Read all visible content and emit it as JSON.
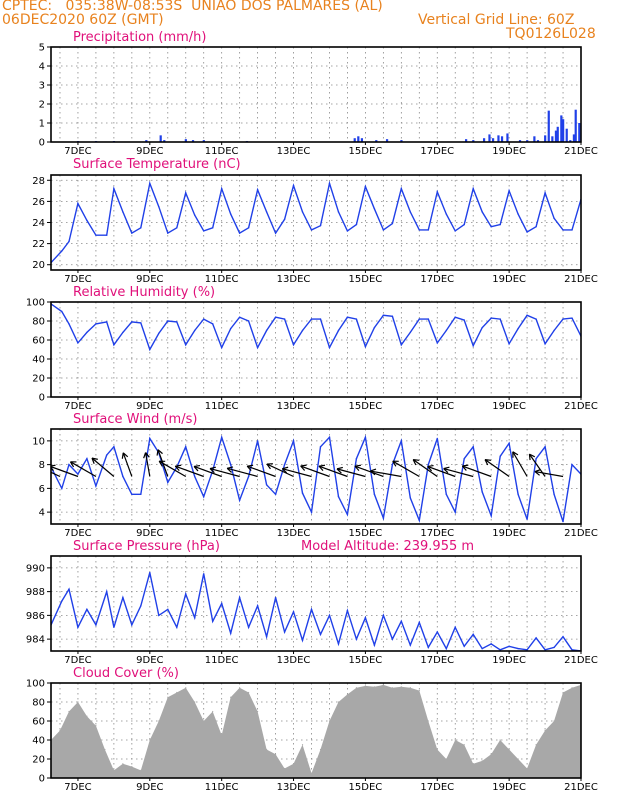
{
  "header": {
    "line1_left": "CPTEC:   035:38W-08:53S  UNIAO DOS PALMARES (AL)",
    "line2_left": "06DEC2020 60Z (GMT)",
    "line1_right": "Vertical Grid Line: 60Z",
    "line2_right": "TQ0126L028"
  },
  "x_ticks": [
    "7DEC",
    "9DEC",
    "11DEC",
    "13DEC",
    "15DEC",
    "17DEC",
    "19DEC",
    "21DEC"
  ],
  "colors": {
    "header": "#e8821e",
    "title": "#e0107a",
    "line": "#2040e8",
    "cloud": "#a8a8a8",
    "arrow": "#000000"
  },
  "chart_data": [
    {
      "type": "bar",
      "title": "Precipitation (mm/h)",
      "ylim": [
        0,
        5
      ],
      "yticks": [
        0,
        1,
        2,
        3,
        4,
        5
      ],
      "xlim": [
        6.25,
        21
      ],
      "x_unit": "day of December 2020",
      "bars": [
        [
          7.0,
          0.05
        ],
        [
          7.5,
          0.05
        ],
        [
          8.0,
          0.05
        ],
        [
          8.9,
          0.1
        ],
        [
          9.3,
          0.35
        ],
        [
          9.4,
          0.1
        ],
        [
          10.0,
          0.15
        ],
        [
          10.2,
          0.1
        ],
        [
          10.5,
          0.1
        ],
        [
          11.7,
          0.05
        ],
        [
          14.7,
          0.2
        ],
        [
          14.8,
          0.3
        ],
        [
          14.9,
          0.2
        ],
        [
          15.3,
          0.1
        ],
        [
          15.6,
          0.15
        ],
        [
          16.0,
          0.1
        ],
        [
          17.8,
          0.15
        ],
        [
          18.0,
          0.1
        ],
        [
          18.3,
          0.2
        ],
        [
          18.45,
          0.4
        ],
        [
          18.55,
          0.2
        ],
        [
          18.7,
          0.35
        ],
        [
          18.8,
          0.3
        ],
        [
          18.95,
          0.45
        ],
        [
          19.3,
          0.1
        ],
        [
          19.5,
          0.1
        ],
        [
          19.7,
          0.3
        ],
        [
          19.8,
          0.1
        ],
        [
          20.0,
          0.35
        ],
        [
          20.1,
          1.65
        ],
        [
          20.2,
          0.3
        ],
        [
          20.3,
          0.6
        ],
        [
          20.35,
          0.8
        ],
        [
          20.45,
          1.4
        ],
        [
          20.5,
          1.2
        ],
        [
          20.6,
          0.7
        ],
        [
          20.7,
          0.1
        ],
        [
          20.8,
          0.4
        ],
        [
          20.85,
          1.7
        ],
        [
          20.95,
          1.0
        ]
      ]
    },
    {
      "type": "line",
      "title": "Surface Temperature (nC)",
      "ylim": [
        19.5,
        28.5
      ],
      "yticks": [
        20,
        22,
        24,
        26,
        28
      ],
      "xlim": [
        6.25,
        21
      ],
      "x": [
        6.25,
        6.55,
        6.75,
        7.0,
        7.25,
        7.5,
        7.8,
        8.0,
        8.25,
        8.5,
        8.75,
        9.0,
        9.25,
        9.5,
        9.75,
        10.0,
        10.25,
        10.5,
        10.75,
        11.0,
        11.25,
        11.5,
        11.75,
        12.0,
        12.25,
        12.5,
        12.75,
        13.0,
        13.25,
        13.5,
        13.75,
        14.0,
        14.25,
        14.5,
        14.75,
        15.0,
        15.25,
        15.5,
        15.75,
        16.0,
        16.25,
        16.5,
        16.75,
        17.0,
        17.25,
        17.5,
        17.75,
        18.0,
        18.25,
        18.5,
        18.75,
        19.0,
        19.25,
        19.5,
        19.75,
        20.0,
        20.25,
        20.5,
        20.75,
        21.0
      ],
      "y": [
        20.2,
        21.3,
        22.2,
        25.8,
        24.2,
        22.8,
        22.8,
        27.2,
        25.0,
        23.0,
        23.5,
        27.7,
        25.5,
        23.0,
        23.5,
        26.8,
        24.7,
        23.2,
        23.5,
        27.2,
        24.8,
        23.0,
        23.5,
        27.1,
        25.0,
        23.0,
        24.3,
        27.5,
        25.0,
        23.3,
        23.7,
        27.7,
        25.0,
        23.2,
        23.8,
        27.4,
        25.3,
        23.3,
        23.9,
        27.2,
        25.0,
        23.3,
        23.3,
        26.9,
        24.8,
        23.2,
        23.8,
        27.2,
        25.0,
        23.6,
        23.8,
        27.0,
        24.8,
        23.1,
        23.6,
        26.8,
        24.4,
        23.3,
        23.3,
        26.2
      ]
    },
    {
      "type": "line",
      "title": "Relative Humidity (%)",
      "ylim": [
        0,
        100
      ],
      "yticks": [
        0,
        20,
        40,
        60,
        80,
        100
      ],
      "xlim": [
        6.25,
        21
      ],
      "x": [
        6.25,
        6.55,
        6.75,
        7.0,
        7.25,
        7.5,
        7.8,
        8.0,
        8.25,
        8.5,
        8.75,
        9.0,
        9.25,
        9.5,
        9.75,
        10.0,
        10.25,
        10.5,
        10.75,
        11.0,
        11.25,
        11.5,
        11.75,
        12.0,
        12.25,
        12.5,
        12.75,
        13.0,
        13.25,
        13.5,
        13.75,
        14.0,
        14.25,
        14.5,
        14.75,
        15.0,
        15.25,
        15.5,
        15.75,
        16.0,
        16.25,
        16.5,
        16.75,
        17.0,
        17.25,
        17.5,
        17.75,
        18.0,
        18.25,
        18.5,
        18.75,
        19.0,
        19.25,
        19.5,
        19.75,
        20.0,
        20.25,
        20.5,
        20.75,
        21.0
      ],
      "y": [
        98,
        90,
        77,
        57,
        68,
        77,
        79,
        55,
        68,
        79,
        78,
        50,
        67,
        80,
        79,
        55,
        70,
        82,
        77,
        52,
        72,
        84,
        80,
        52,
        70,
        84,
        82,
        55,
        70,
        82,
        82,
        52,
        70,
        84,
        82,
        53,
        73,
        86,
        85,
        55,
        68,
        82,
        82,
        57,
        70,
        84,
        81,
        54,
        73,
        83,
        82,
        56,
        72,
        86,
        82,
        56,
        70,
        82,
        83,
        64
      ]
    },
    {
      "type": "line",
      "title": "Surface Wind (m/s)",
      "ylim": [
        3,
        11
      ],
      "yticks": [
        4,
        6,
        8,
        10
      ],
      "xlim": [
        6.25,
        21
      ],
      "x": [
        6.25,
        6.55,
        6.75,
        7.0,
        7.25,
        7.5,
        7.8,
        8.0,
        8.25,
        8.5,
        8.75,
        9.0,
        9.25,
        9.5,
        9.75,
        10.0,
        10.25,
        10.5,
        10.75,
        11.0,
        11.25,
        11.5,
        11.75,
        12.0,
        12.25,
        12.5,
        12.75,
        13.0,
        13.25,
        13.5,
        13.75,
        14.0,
        14.25,
        14.5,
        14.75,
        15.0,
        15.25,
        15.5,
        15.75,
        16.0,
        16.25,
        16.5,
        16.75,
        17.0,
        17.25,
        17.5,
        17.75,
        18.0,
        18.25,
        18.5,
        18.75,
        19.0,
        19.25,
        19.5,
        19.75,
        20.0,
        20.25,
        20.5,
        20.75,
        21.0
      ],
      "y": [
        7.8,
        6.0,
        8.0,
        7.2,
        8.5,
        6.2,
        8.8,
        9.5,
        7.0,
        5.5,
        5.5,
        10.2,
        9.0,
        6.5,
        7.8,
        9.5,
        7.0,
        5.3,
        7.5,
        10.3,
        8.0,
        5.0,
        7.0,
        10.0,
        6.3,
        5.5,
        8.0,
        10.0,
        5.6,
        4.0,
        9.5,
        10.3,
        5.3,
        3.8,
        8.5,
        10.3,
        5.5,
        3.5,
        8.0,
        10.0,
        5.2,
        3.3,
        8.0,
        10.2,
        5.5,
        4.0,
        8.5,
        9.5,
        5.7,
        3.7,
        8.7,
        9.8,
        5.5,
        3.4,
        8.5,
        9.5,
        5.5,
        3.2,
        8.0,
        7.2
      ],
      "arrows_x": [
        6.5,
        7.0,
        7.5,
        8.0,
        8.5,
        9.0,
        9.5,
        10.0,
        10.5,
        11.0,
        11.5,
        12.0,
        12.5,
        13.0,
        13.5,
        14.0,
        14.5,
        15.0,
        15.5,
        16.0,
        16.5,
        17.0,
        17.5,
        18.0,
        18.5,
        19.0,
        19.5,
        20.0,
        20.5
      ],
      "arrows_speed": [
        7.6,
        7.2,
        7.0,
        6.8,
        6.0,
        5.8,
        6.8,
        7.3,
        7.2,
        7.0,
        7.3,
        7.5,
        7.2,
        7.0,
        7.2,
        7.3,
        7.2,
        7.0,
        7.2,
        7.5,
        7.3,
        7.0,
        7.0,
        7.3,
        7.3,
        7.0,
        6.8,
        6.5,
        6.8
      ],
      "arrows_dir_deg": [
        25,
        20,
        30,
        40,
        70,
        80,
        70,
        30,
        20,
        20,
        15,
        15,
        20,
        25,
        15,
        20,
        20,
        15,
        20,
        10,
        30,
        35,
        20,
        15,
        20,
        35,
        60,
        55,
        10
      ]
    },
    {
      "type": "line",
      "title": "Surface Pressure (hPa)",
      "annotation": "Model Altitude: 239.955 m",
      "ylim": [
        983,
        991
      ],
      "yticks": [
        984,
        986,
        988,
        990
      ],
      "xlim": [
        6.25,
        21
      ],
      "x": [
        6.25,
        6.55,
        6.75,
        7.0,
        7.25,
        7.5,
        7.8,
        8.0,
        8.25,
        8.5,
        8.75,
        9.0,
        9.25,
        9.5,
        9.75,
        10.0,
        10.25,
        10.5,
        10.75,
        11.0,
        11.25,
        11.5,
        11.75,
        12.0,
        12.25,
        12.5,
        12.75,
        13.0,
        13.25,
        13.5,
        13.75,
        14.0,
        14.25,
        14.5,
        14.75,
        15.0,
        15.25,
        15.5,
        15.75,
        16.0,
        16.25,
        16.5,
        16.75,
        17.0,
        17.25,
        17.5,
        17.75,
        18.0,
        18.25,
        18.5,
        18.75,
        19.0,
        19.25,
        19.5,
        19.75,
        20.0,
        20.25,
        20.5,
        20.75,
        21.0
      ],
      "y": [
        985.2,
        987.2,
        988.2,
        985.0,
        986.5,
        985.2,
        988.0,
        985.0,
        987.5,
        985.2,
        986.8,
        989.6,
        986.0,
        986.5,
        985.0,
        987.8,
        985.8,
        989.5,
        985.5,
        987.0,
        984.5,
        987.5,
        985.0,
        986.8,
        984.2,
        987.5,
        984.6,
        986.3,
        983.9,
        986.5,
        984.4,
        986.0,
        983.6,
        986.4,
        984.0,
        985.8,
        983.5,
        986.0,
        984.0,
        985.5,
        983.5,
        985.4,
        983.3,
        984.6,
        983.2,
        985.0,
        983.4,
        984.4,
        983.2,
        983.6,
        983.1,
        983.4,
        983.2,
        983.1,
        984.1,
        983.1,
        983.3,
        984.2,
        983.1,
        983.0
      ]
    },
    {
      "type": "area",
      "title": "Cloud Cover (%)",
      "ylim": [
        0,
        100
      ],
      "yticks": [
        0,
        20,
        40,
        60,
        80,
        100
      ],
      "xlim": [
        6.25,
        21
      ],
      "x": [
        6.25,
        6.5,
        6.75,
        7.0,
        7.25,
        7.5,
        7.75,
        8.0,
        8.25,
        8.5,
        8.75,
        9.0,
        9.25,
        9.5,
        9.75,
        10.0,
        10.25,
        10.5,
        10.75,
        11.0,
        11.25,
        11.5,
        11.75,
        12.0,
        12.25,
        12.5,
        12.75,
        13.0,
        13.25,
        13.5,
        13.75,
        14.0,
        14.25,
        14.5,
        14.75,
        15.0,
        15.25,
        15.5,
        15.75,
        16.0,
        16.25,
        16.5,
        16.75,
        17.0,
        17.25,
        17.5,
        17.75,
        18.0,
        18.25,
        18.5,
        18.75,
        19.0,
        19.25,
        19.5,
        19.75,
        20.0,
        20.25,
        20.5,
        20.75,
        21.0
      ],
      "y": [
        40,
        50,
        70,
        80,
        65,
        55,
        30,
        8,
        15,
        12,
        8,
        40,
        60,
        85,
        90,
        95,
        80,
        60,
        70,
        45,
        85,
        95,
        90,
        70,
        30,
        25,
        10,
        15,
        35,
        5,
        30,
        60,
        80,
        88,
        95,
        97,
        96,
        98,
        95,
        96,
        95,
        92,
        60,
        30,
        20,
        40,
        35,
        15,
        18,
        25,
        40,
        30,
        20,
        10,
        35,
        50,
        60,
        90,
        95,
        98
      ]
    }
  ]
}
